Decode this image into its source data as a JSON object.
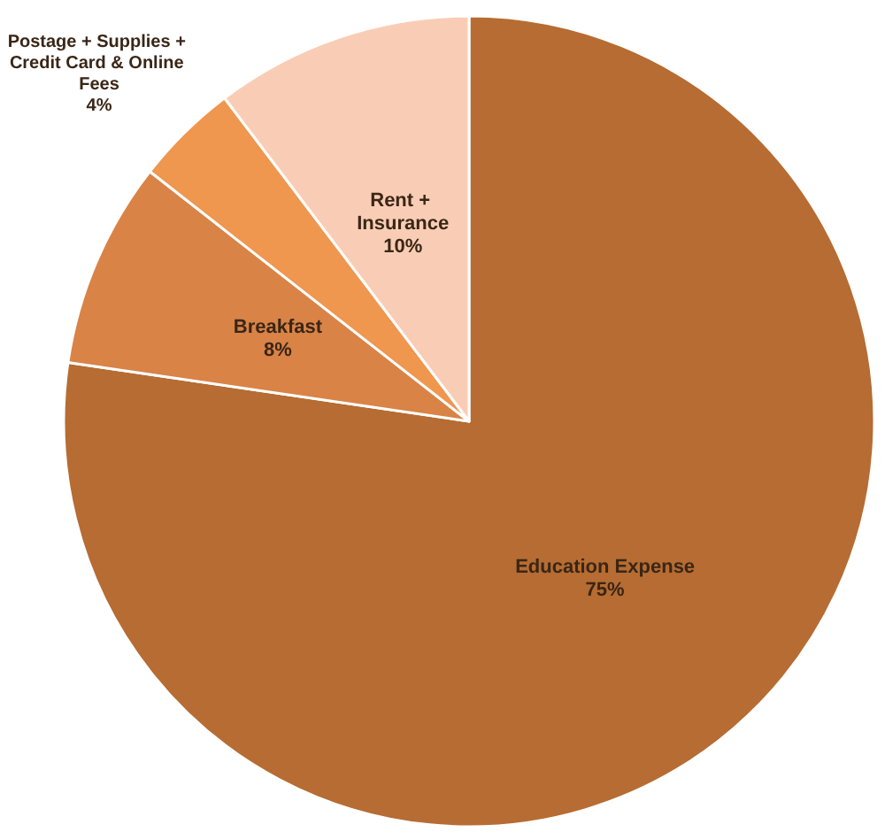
{
  "chart_data": {
    "type": "pie",
    "categories": [
      "Education Expense",
      "Breakfast",
      "Postage + Supplies + Credit Card & Online Fees",
      "Rent + Insurance"
    ],
    "values": [
      75,
      8,
      4,
      10
    ],
    "colors": [
      "#b66c32",
      "#d98347",
      "#ef964f",
      "#f9cdb5"
    ],
    "value_labels": [
      "75%",
      "8%",
      "4%",
      "10%"
    ]
  }
}
